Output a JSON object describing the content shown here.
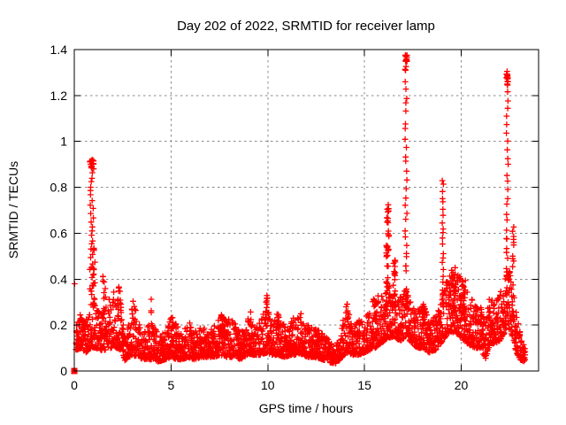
{
  "window": {
    "background": "#ffffff"
  },
  "chart_data": {
    "type": "scatter",
    "title": "Day 202 of 2022, SRMTID for receiver lamp",
    "xlabel": "GPS time / hours",
    "ylabel": "SRMTID / TECUs",
    "xlim": [
      0,
      24
    ],
    "ylim": [
      0,
      1.4
    ],
    "xticks": [
      0,
      5,
      10,
      15,
      20
    ],
    "yticks": [
      0,
      0.2,
      0.4,
      0.6,
      0.8,
      1,
      1.2,
      1.4
    ],
    "grid": true,
    "grid_style": "dotted",
    "legend": "none",
    "marker": "plus",
    "marker_color": "#ff0000",
    "grid_color": "#888888",
    "axis_color": "#000000",
    "text_color": "#000000",
    "seed": 20220721,
    "baseline_points_per_hour": 80,
    "baseline_envelope": [
      [
        0.08,
        0.09,
        0.22
      ],
      [
        0.35,
        0.1,
        0.25
      ],
      [
        0.6,
        0.08,
        0.22
      ],
      [
        0.85,
        0.1,
        0.3
      ],
      [
        1.1,
        0.1,
        0.32
      ],
      [
        1.35,
        0.09,
        0.26
      ],
      [
        1.6,
        0.09,
        0.28
      ],
      [
        1.9,
        0.1,
        0.33
      ],
      [
        2.2,
        0.1,
        0.37
      ],
      [
        2.4,
        0.09,
        0.33
      ],
      [
        2.65,
        0.04,
        0.14
      ],
      [
        2.85,
        0.06,
        0.22
      ],
      [
        3.05,
        0.07,
        0.31
      ],
      [
        3.3,
        0.06,
        0.24
      ],
      [
        3.55,
        0.05,
        0.16
      ],
      [
        3.8,
        0.05,
        0.2
      ],
      [
        4.05,
        0.05,
        0.22
      ],
      [
        4.35,
        0.04,
        0.15
      ],
      [
        4.7,
        0.05,
        0.17
      ],
      [
        5.0,
        0.06,
        0.23
      ],
      [
        5.3,
        0.05,
        0.2
      ],
      [
        5.6,
        0.05,
        0.16
      ],
      [
        5.9,
        0.06,
        0.22
      ],
      [
        6.2,
        0.05,
        0.17
      ],
      [
        6.55,
        0.06,
        0.2
      ],
      [
        6.9,
        0.06,
        0.17
      ],
      [
        7.2,
        0.06,
        0.2
      ],
      [
        7.55,
        0.07,
        0.25
      ],
      [
        7.9,
        0.06,
        0.23
      ],
      [
        8.25,
        0.06,
        0.22
      ],
      [
        8.6,
        0.05,
        0.17
      ],
      [
        8.95,
        0.07,
        0.23
      ],
      [
        9.3,
        0.07,
        0.2
      ],
      [
        9.6,
        0.07,
        0.22
      ],
      [
        9.95,
        0.08,
        0.28
      ],
      [
        10.25,
        0.07,
        0.22
      ],
      [
        10.55,
        0.07,
        0.26
      ],
      [
        10.9,
        0.06,
        0.19
      ],
      [
        11.2,
        0.07,
        0.22
      ],
      [
        11.5,
        0.07,
        0.25
      ],
      [
        11.8,
        0.07,
        0.22
      ],
      [
        12.1,
        0.06,
        0.2
      ],
      [
        12.45,
        0.06,
        0.19
      ],
      [
        12.8,
        0.05,
        0.17
      ],
      [
        13.1,
        0.04,
        0.14
      ],
      [
        13.45,
        0.03,
        0.11
      ],
      [
        13.75,
        0.05,
        0.15
      ],
      [
        14.05,
        0.08,
        0.32
      ],
      [
        14.35,
        0.07,
        0.2
      ],
      [
        14.7,
        0.07,
        0.22
      ],
      [
        15.0,
        0.08,
        0.24
      ],
      [
        15.3,
        0.09,
        0.28
      ],
      [
        15.55,
        0.1,
        0.34
      ],
      [
        15.85,
        0.12,
        0.32
      ],
      [
        16.15,
        0.14,
        0.36
      ],
      [
        16.5,
        0.15,
        0.38
      ],
      [
        16.85,
        0.13,
        0.33
      ],
      [
        17.15,
        0.15,
        0.36
      ],
      [
        17.45,
        0.12,
        0.3
      ],
      [
        17.75,
        0.1,
        0.27
      ],
      [
        18.05,
        0.1,
        0.3
      ],
      [
        18.35,
        0.08,
        0.23
      ],
      [
        18.65,
        0.09,
        0.25
      ],
      [
        18.95,
        0.12,
        0.3
      ],
      [
        19.25,
        0.16,
        0.42
      ],
      [
        19.55,
        0.17,
        0.46
      ],
      [
        19.85,
        0.16,
        0.43
      ],
      [
        20.15,
        0.13,
        0.38
      ],
      [
        20.45,
        0.11,
        0.33
      ],
      [
        20.75,
        0.1,
        0.28
      ],
      [
        21.0,
        0.1,
        0.3
      ],
      [
        21.25,
        0.05,
        0.2
      ],
      [
        21.5,
        0.12,
        0.34
      ],
      [
        21.8,
        0.12,
        0.3
      ],
      [
        22.1,
        0.14,
        0.38
      ],
      [
        22.4,
        0.2,
        0.46
      ],
      [
        22.65,
        0.15,
        0.42
      ],
      [
        22.85,
        0.08,
        0.28
      ],
      [
        23.05,
        0.05,
        0.16
      ],
      [
        23.3,
        0.04,
        0.1
      ]
    ],
    "spikes": [
      {
        "x": 0.9,
        "spread": 0.1,
        "ymin": 0.33,
        "ymax": 0.92,
        "count": 48,
        "profile": "top"
      },
      {
        "x": 1.05,
        "spread": 0.06,
        "ymin": 0.3,
        "ymax": 0.58,
        "count": 8,
        "profile": "uniform"
      },
      {
        "x": 1.55,
        "spread": 0.08,
        "ymin": 0.25,
        "ymax": 0.46,
        "count": 9,
        "profile": "dense"
      },
      {
        "x": 2.3,
        "spread": 0.08,
        "ymin": 0.22,
        "ymax": 0.38,
        "count": 8,
        "profile": "dense"
      },
      {
        "x": 4.0,
        "spread": 0.03,
        "ymin": 0.21,
        "ymax": 0.33,
        "count": 3,
        "profile": "uniform"
      },
      {
        "x": 5.05,
        "spread": 0.05,
        "ymin": 0.18,
        "ymax": 0.25,
        "count": 4,
        "profile": "uniform"
      },
      {
        "x": 7.6,
        "spread": 0.06,
        "ymin": 0.18,
        "ymax": 0.26,
        "count": 5,
        "profile": "uniform"
      },
      {
        "x": 9.1,
        "spread": 0.04,
        "ymin": 0.18,
        "ymax": 0.26,
        "count": 4,
        "profile": "uniform"
      },
      {
        "x": 9.95,
        "spread": 0.05,
        "ymin": 0.2,
        "ymax": 0.33,
        "count": 7,
        "profile": "dense"
      },
      {
        "x": 10.55,
        "spread": 0.04,
        "ymin": 0.18,
        "ymax": 0.28,
        "count": 5,
        "profile": "uniform"
      },
      {
        "x": 11.7,
        "spread": 0.05,
        "ymin": 0.17,
        "ymax": 0.25,
        "count": 4,
        "profile": "uniform"
      },
      {
        "x": 14.1,
        "spread": 0.05,
        "ymin": 0.18,
        "ymax": 0.33,
        "count": 6,
        "profile": "dense"
      },
      {
        "x": 15.55,
        "spread": 0.05,
        "ymin": 0.2,
        "ymax": 0.35,
        "count": 6,
        "profile": "dense"
      },
      {
        "x": 16.2,
        "spread": 0.07,
        "ymin": 0.32,
        "ymax": 0.75,
        "count": 36,
        "profile": "dense"
      },
      {
        "x": 16.55,
        "spread": 0.05,
        "ymin": 0.28,
        "ymax": 0.5,
        "count": 14,
        "profile": "dense"
      },
      {
        "x": 17.15,
        "spread": 0.05,
        "ymin": 0.28,
        "ymax": 1.38,
        "count": 48,
        "profile": "top"
      },
      {
        "x": 18.05,
        "spread": 0.04,
        "ymin": 0.18,
        "ymax": 0.3,
        "count": 5,
        "profile": "uniform"
      },
      {
        "x": 19.05,
        "spread": 0.035,
        "ymin": 0.32,
        "ymax": 0.85,
        "count": 20,
        "profile": "ladder"
      },
      {
        "x": 19.55,
        "spread": 0.3,
        "ymin": 0.2,
        "ymax": 0.45,
        "count": 30,
        "profile": "dense"
      },
      {
        "x": 20.0,
        "spread": 0.25,
        "ymin": 0.18,
        "ymax": 0.4,
        "count": 24,
        "profile": "dense"
      },
      {
        "x": 22.38,
        "spread": 0.05,
        "ymin": 0.38,
        "ymax": 1.31,
        "count": 42,
        "profile": "top"
      },
      {
        "x": 22.68,
        "spread": 0.04,
        "ymin": 0.38,
        "ymax": 0.63,
        "count": 10,
        "profile": "dense"
      }
    ],
    "special_points": [
      {
        "x": 0,
        "y": 0,
        "marker": "square"
      },
      {
        "x": 0.02,
        "y": 0.38,
        "marker": "plus"
      }
    ]
  }
}
